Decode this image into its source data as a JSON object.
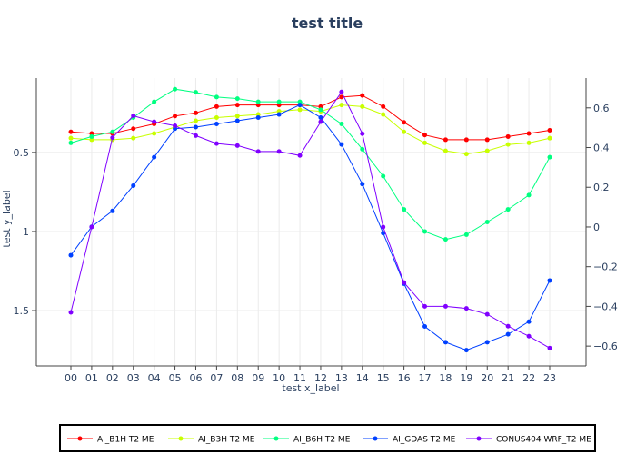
{
  "chart_data": {
    "type": "line",
    "title": "test title",
    "xlabel": "test x_label",
    "ylabel": "test y_label",
    "categories": [
      "00",
      "01",
      "02",
      "03",
      "04",
      "05",
      "06",
      "07",
      "08",
      "09",
      "10",
      "11",
      "12",
      "13",
      "14",
      "15",
      "16",
      "17",
      "18",
      "19",
      "20",
      "21",
      "22",
      "23"
    ],
    "left_axis": {
      "range": [
        -1.85,
        -0.03
      ],
      "ticks": [
        -0.5,
        -1,
        -1.5
      ]
    },
    "right_axis": {
      "range": [
        -0.7,
        0.75
      ],
      "ticks": [
        0.6,
        0.4,
        0.2,
        0,
        -0.2,
        -0.4,
        -0.6
      ]
    },
    "grid": true,
    "legend_position": "bottom",
    "series": [
      {
        "name": "AI_B1H T2 ME",
        "color": "#ff0000",
        "axis": "left",
        "values": [
          -0.37,
          -0.38,
          -0.38,
          -0.35,
          -0.32,
          -0.27,
          -0.25,
          -0.21,
          -0.2,
          -0.2,
          -0.2,
          -0.2,
          -0.21,
          -0.15,
          -0.14,
          -0.21,
          -0.31,
          -0.39,
          -0.42,
          -0.42,
          -0.42,
          -0.4,
          -0.38,
          -0.36
        ]
      },
      {
        "name": "AI_B3H T2 ME",
        "color": "#c8ff00",
        "axis": "left",
        "values": [
          -0.41,
          -0.42,
          -0.42,
          -0.41,
          -0.38,
          -0.34,
          -0.3,
          -0.28,
          -0.27,
          -0.26,
          -0.24,
          -0.23,
          -0.24,
          -0.2,
          -0.21,
          -0.26,
          -0.37,
          -0.44,
          -0.49,
          -0.51,
          -0.49,
          -0.45,
          -0.44,
          -0.41
        ]
      },
      {
        "name": "AI_B6H T2 ME",
        "color": "#00ff80",
        "axis": "left",
        "values": [
          -0.44,
          -0.4,
          -0.37,
          -0.28,
          -0.18,
          -0.1,
          -0.12,
          -0.15,
          -0.16,
          -0.18,
          -0.18,
          -0.18,
          -0.23,
          -0.32,
          -0.48,
          -0.65,
          -0.86,
          -1.0,
          -1.05,
          -1.02,
          -0.94,
          -0.86,
          -0.77,
          -0.53
        ]
      },
      {
        "name": "AI_GDAS T2 ME",
        "color": "#0040ff",
        "axis": "left",
        "values": [
          -1.15,
          -0.97,
          -0.87,
          -0.71,
          -0.53,
          -0.35,
          -0.34,
          -0.32,
          -0.3,
          -0.28,
          -0.26,
          -0.2,
          -0.28,
          -0.45,
          -0.7,
          -1.01,
          -1.33,
          -1.6,
          -1.7,
          -1.75,
          -1.7,
          -1.65,
          -1.57,
          -1.31
        ]
      },
      {
        "name": "CONUS404 WRF_T2 ME",
        "color": "#8000ff",
        "axis": "right",
        "values": [
          -0.43,
          0.0,
          0.45,
          0.56,
          0.53,
          0.51,
          0.46,
          0.42,
          0.41,
          0.38,
          0.38,
          0.36,
          0.53,
          0.68,
          0.47,
          0.0,
          -0.28,
          -0.4,
          -0.4,
          -0.41,
          -0.44,
          -0.5,
          -0.55,
          -0.61
        ]
      }
    ]
  }
}
